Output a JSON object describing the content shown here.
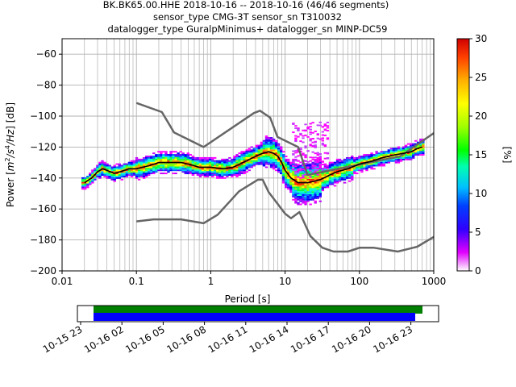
{
  "title_lines": [
    "BK.BK65.00.HHE   2018-10-16 -- 2018-10-16  (46/46 segments)",
    "sensor_type CMG-3T sensor_sn T310032",
    "datalogger_type GuralpMinimus+ datalogger_sn MINP-DC59"
  ],
  "colorbar": {
    "label": "[%]",
    "ticks": [
      "0",
      "5",
      "10",
      "15",
      "20",
      "25",
      "30"
    ],
    "range": [
      0,
      30
    ]
  },
  "chart_data": [
    {
      "type": "heatmap",
      "subtype": "probabilistic power spectral density",
      "xlabel": "Period [s]",
      "ylabel_parts": [
        "Power [",
        "m",
        "2",
        "/s",
        "4",
        "/Hz",
        "] [dB]"
      ],
      "x_scale": "log",
      "xlim": [
        0.01,
        1000
      ],
      "ylim": [
        -200,
        -50
      ],
      "x_ticks": [
        "0.01",
        "0.1",
        "1",
        "10",
        "100",
        "1000"
      ],
      "y_ticks": [
        "-60",
        "-80",
        "-100",
        "-120",
        "-140",
        "-160",
        "-180",
        "-200"
      ],
      "grid": true,
      "noise_models": {
        "high": [
          [
            0.1,
            -91.5
          ],
          [
            0.22,
            -97.4
          ],
          [
            0.32,
            -110.5
          ],
          [
            0.8,
            -120
          ],
          [
            3.8,
            -98
          ],
          [
            4.6,
            -96.5
          ],
          [
            6.3,
            -101
          ],
          [
            7.9,
            -113.5
          ],
          [
            15,
            -120
          ],
          [
            20,
            -138
          ],
          [
            354,
            -126
          ],
          [
            1000,
            -111
          ]
        ],
        "low": [
          [
            0.1,
            -168
          ],
          [
            0.17,
            -166.7
          ],
          [
            0.4,
            -166.7
          ],
          [
            0.8,
            -169.2
          ],
          [
            1.24,
            -163.7
          ],
          [
            2.4,
            -148.6
          ],
          [
            4.3,
            -141.1
          ],
          [
            5,
            -141.1
          ],
          [
            6,
            -149
          ],
          [
            10,
            -163
          ],
          [
            12,
            -166
          ],
          [
            15.6,
            -162
          ],
          [
            21.9,
            -177.5
          ],
          [
            31.6,
            -185
          ],
          [
            45,
            -187.5
          ],
          [
            70,
            -187.5
          ],
          [
            101,
            -185
          ],
          [
            154,
            -185
          ],
          [
            328,
            -187.5
          ],
          [
            600,
            -184.4
          ],
          [
            1000,
            -178
          ]
        ]
      },
      "mean_curve": [
        [
          0.02,
          -143
        ],
        [
          0.025,
          -140
        ],
        [
          0.03,
          -136
        ],
        [
          0.035,
          -134
        ],
        [
          0.04,
          -135
        ],
        [
          0.05,
          -137
        ],
        [
          0.06,
          -136
        ],
        [
          0.08,
          -134
        ],
        [
          0.1,
          -134
        ],
        [
          0.15,
          -132
        ],
        [
          0.2,
          -130
        ],
        [
          0.3,
          -130
        ],
        [
          0.4,
          -130
        ],
        [
          0.5,
          -131
        ],
        [
          0.7,
          -133
        ],
        [
          1,
          -133
        ],
        [
          1.5,
          -134
        ],
        [
          2,
          -133
        ],
        [
          3,
          -129
        ],
        [
          4,
          -126
        ],
        [
          5,
          -124
        ],
        [
          6,
          -123
        ],
        [
          7,
          -124
        ],
        [
          8,
          -126
        ],
        [
          9,
          -130
        ],
        [
          10,
          -135
        ],
        [
          12,
          -140
        ],
        [
          15,
          -143
        ],
        [
          20,
          -143
        ],
        [
          25,
          -142
        ],
        [
          30,
          -141
        ],
        [
          40,
          -138
        ],
        [
          50,
          -136
        ],
        [
          70,
          -134
        ],
        [
          100,
          -131
        ],
        [
          150,
          -129
        ],
        [
          200,
          -127
        ],
        [
          300,
          -125
        ],
        [
          400,
          -124
        ],
        [
          500,
          -123
        ],
        [
          600,
          -121
        ],
        [
          700,
          -120
        ]
      ]
    },
    {
      "type": "timeline",
      "x_ticks": [
        "10-15 23",
        "10-16 02",
        "10-16 05",
        "10-16 08",
        "10-16 11",
        "10-16 14",
        "10-16 17",
        "10-16 20",
        "10-16 23"
      ],
      "bars": [
        {
          "color": "#008000",
          "start": "10-16 00:00",
          "end": "10-17 00:00"
        },
        {
          "color": "#0000ff",
          "start": "10-16 00:00",
          "end": "10-16 23:50"
        }
      ]
    }
  ],
  "colors": {
    "noise_model": "#666666",
    "mean": "#000000",
    "grid": "#b0b0b0"
  }
}
